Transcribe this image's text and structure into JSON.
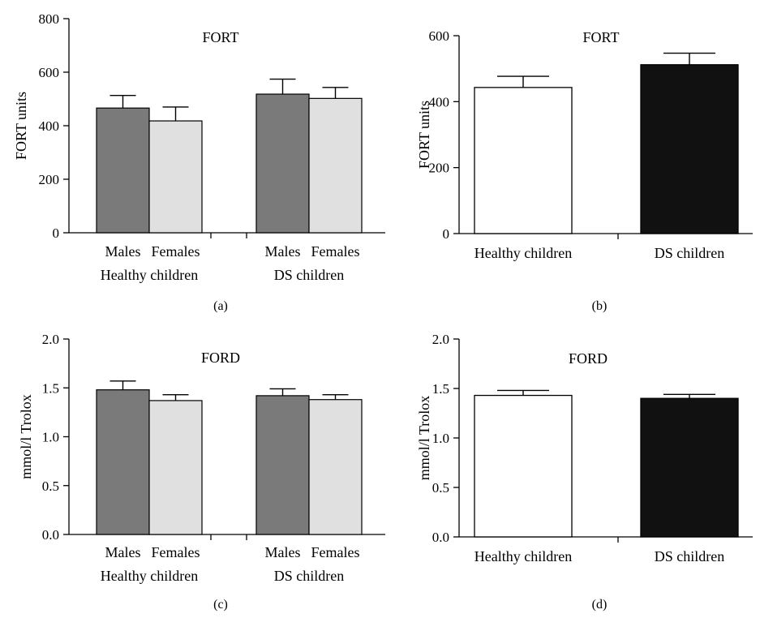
{
  "colors": {
    "males": "#7a7a7a",
    "females": "#e0e0e0",
    "healthy": "#ffffff",
    "ds": "#111111",
    "axis": "#000000"
  },
  "chart_data": [
    {
      "id": "a",
      "type": "bar",
      "title": "FORT",
      "ylabel": "FORT units",
      "panel_label": "(a)",
      "ylim": [
        0,
        800
      ],
      "yticks": [
        0,
        200,
        400,
        600,
        800
      ],
      "groups": [
        "Healthy children",
        "DS children"
      ],
      "categories": [
        "Males",
        "Females"
      ],
      "series": [
        {
          "group": "Healthy children",
          "values": [
            466,
            418
          ],
          "errors": [
            47,
            52
          ]
        },
        {
          "group": "DS children",
          "values": [
            518,
            502
          ],
          "errors": [
            56,
            41
          ]
        }
      ]
    },
    {
      "id": "b",
      "type": "bar",
      "title": "FORT",
      "ylabel": "FORT units",
      "panel_label": "(b)",
      "ylim": [
        0,
        600
      ],
      "yticks": [
        0,
        200,
        400,
        600
      ],
      "categories": [
        "Healthy children",
        "DS children"
      ],
      "values": [
        443,
        512
      ],
      "errors": [
        34,
        35
      ]
    },
    {
      "id": "c",
      "type": "bar",
      "title": "FORD",
      "ylabel": "mmol/l Trolox",
      "panel_label": "(c)",
      "ylim": [
        0,
        2.0
      ],
      "yticks": [
        "0.0",
        "0.5",
        "1.0",
        "1.5",
        "2.0"
      ],
      "groups": [
        "Healthy children",
        "DS children"
      ],
      "categories": [
        "Males",
        "Females"
      ],
      "series": [
        {
          "group": "Healthy children",
          "values": [
            1.48,
            1.37
          ],
          "errors": [
            0.09,
            0.06
          ]
        },
        {
          "group": "DS children",
          "values": [
            1.42,
            1.38
          ],
          "errors": [
            0.07,
            0.05
          ]
        }
      ]
    },
    {
      "id": "d",
      "type": "bar",
      "title": "FORD",
      "ylabel": "mmol/l Trolox",
      "panel_label": "(d)",
      "ylim": [
        0,
        2.0
      ],
      "yticks": [
        "0.0",
        "0.5",
        "1.0",
        "1.5",
        "2.0"
      ],
      "categories": [
        "Healthy children",
        "DS children"
      ],
      "values": [
        1.43,
        1.4
      ],
      "errors": [
        0.05,
        0.04
      ]
    }
  ]
}
